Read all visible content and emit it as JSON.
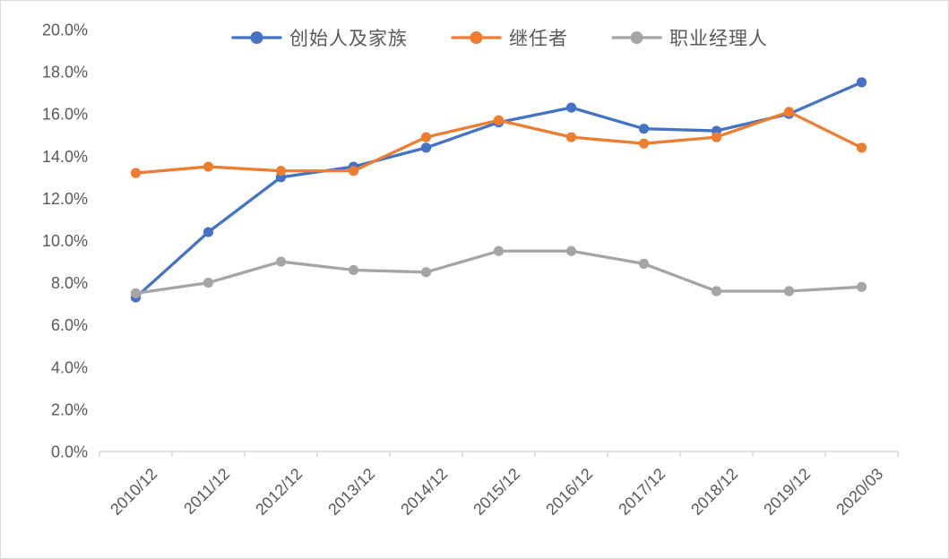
{
  "chart_data": {
    "type": "line",
    "title": "",
    "xlabel": "",
    "ylabel": "",
    "categories": [
      "2010/12",
      "2011/12",
      "2012/12",
      "2013/12",
      "2014/12",
      "2015/12",
      "2016/12",
      "2017/12",
      "2018/12",
      "2019/12",
      "2020/03"
    ],
    "series": [
      {
        "name": "创始人及家族",
        "color": "#4472C4",
        "values": [
          7.3,
          10.4,
          13.0,
          13.5,
          14.4,
          15.6,
          16.3,
          15.3,
          15.2,
          16.0,
          17.5
        ]
      },
      {
        "name": "继任者",
        "color": "#ED7D31",
        "values": [
          13.2,
          13.5,
          13.3,
          13.3,
          14.9,
          15.7,
          14.9,
          14.6,
          14.9,
          16.1,
          14.4
        ]
      },
      {
        "name": "职业经理人",
        "color": "#A5A5A5",
        "values": [
          7.5,
          8.0,
          9.0,
          8.6,
          8.5,
          9.5,
          9.5,
          8.9,
          7.6,
          7.6,
          7.8
        ]
      }
    ],
    "ylim": [
      0,
      20
    ],
    "ytick_step": 2,
    "ytick_labels": [
      "0.0%",
      "2.0%",
      "4.0%",
      "6.0%",
      "8.0%",
      "10.0%",
      "12.0%",
      "14.0%",
      "16.0%",
      "18.0%",
      "20.0%"
    ],
    "x_label_rotation": -45,
    "legend_position": "top-center",
    "grid": "off",
    "marker": "circle",
    "axis_color": "#d9d9d9",
    "label_color": "#595959"
  }
}
